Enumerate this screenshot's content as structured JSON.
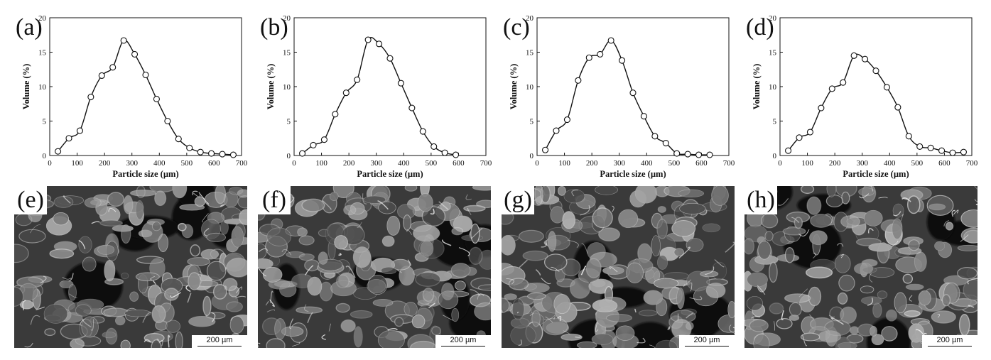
{
  "chart_data": [
    {
      "type": "line",
      "panel_label": "(a)",
      "xlabel": "Particle size (µm)",
      "ylabel": "Volume (%)",
      "xlim": [
        0,
        700
      ],
      "ylim": [
        0,
        20
      ],
      "xticks": [
        0,
        100,
        200,
        300,
        400,
        500,
        600,
        700
      ],
      "yticks": [
        0,
        5,
        10,
        15,
        20
      ],
      "marker": "open-circle",
      "x": [
        30,
        70,
        110,
        150,
        190,
        230,
        270,
        310,
        350,
        390,
        430,
        470,
        510,
        550,
        590,
        630,
        670
      ],
      "y": [
        0.6,
        2.5,
        3.6,
        8.5,
        11.6,
        12.8,
        16.7,
        14.7,
        11.7,
        8.2,
        5.0,
        2.4,
        1.1,
        0.5,
        0.3,
        0.2,
        0.1
      ]
    },
    {
      "type": "line",
      "panel_label": "(b)",
      "xlabel": "Particle size (µm)",
      "ylabel": "Volume (%)",
      "xlim": [
        0,
        700
      ],
      "ylim": [
        0,
        20
      ],
      "xticks": [
        0,
        100,
        200,
        300,
        400,
        500,
        600,
        700
      ],
      "yticks": [
        0,
        5,
        10,
        15,
        20
      ],
      "marker": "open-circle",
      "x": [
        30,
        70,
        110,
        150,
        190,
        230,
        270,
        310,
        350,
        390,
        430,
        470,
        510,
        550,
        590
      ],
      "y": [
        0.3,
        1.5,
        2.3,
        6.0,
        9.1,
        11.0,
        16.8,
        16.2,
        14.1,
        10.5,
        6.9,
        3.5,
        1.3,
        0.4,
        0.1
      ]
    },
    {
      "type": "line",
      "panel_label": "(c)",
      "xlabel": "Particle size (µm)",
      "ylabel": "Volume (%)",
      "xlim": [
        0,
        700
      ],
      "ylim": [
        0,
        20
      ],
      "xticks": [
        0,
        100,
        200,
        300,
        400,
        500,
        600,
        700
      ],
      "yticks": [
        0,
        5,
        10,
        15,
        20
      ],
      "marker": "open-circle",
      "x": [
        30,
        70,
        110,
        150,
        190,
        230,
        270,
        310,
        350,
        390,
        430,
        470,
        510,
        550,
        590,
        630
      ],
      "y": [
        0.8,
        3.6,
        5.2,
        10.9,
        14.2,
        14.7,
        16.7,
        13.8,
        9.1,
        5.7,
        2.8,
        1.8,
        0.3,
        0.2,
        0.1,
        0.1
      ]
    },
    {
      "type": "line",
      "panel_label": "(d)",
      "xlabel": "Particle size (µm)",
      "ylabel": "Volume (%)",
      "xlim": [
        0,
        700
      ],
      "ylim": [
        0,
        20
      ],
      "xticks": [
        0,
        100,
        200,
        300,
        400,
        500,
        600,
        700
      ],
      "yticks": [
        0,
        5,
        10,
        15,
        20
      ],
      "marker": "open-circle",
      "x": [
        30,
        70,
        110,
        150,
        190,
        230,
        270,
        310,
        350,
        390,
        430,
        470,
        510,
        550,
        590,
        630,
        670
      ],
      "y": [
        0.7,
        2.6,
        3.4,
        6.9,
        9.7,
        10.6,
        14.5,
        14.0,
        12.3,
        9.9,
        7.0,
        2.8,
        1.3,
        1.1,
        0.7,
        0.4,
        0.5
      ]
    }
  ],
  "images": [
    {
      "panel_label": "(e)",
      "scale_bar": "200 µm",
      "seed": 11
    },
    {
      "panel_label": "(f)",
      "scale_bar": "200 µm",
      "seed": 23
    },
    {
      "panel_label": "(g)",
      "scale_bar": "200 µm",
      "seed": 37
    },
    {
      "panel_label": "(h)",
      "scale_bar": "200 µm",
      "seed": 51
    }
  ]
}
